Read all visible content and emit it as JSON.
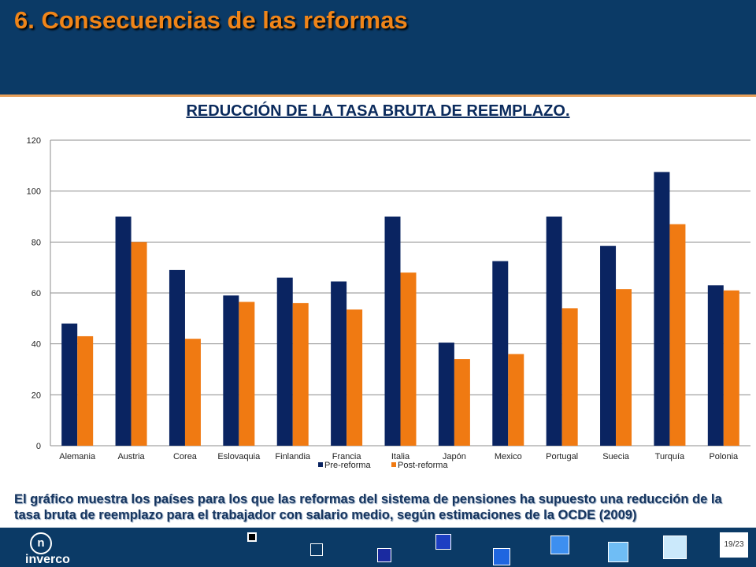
{
  "slide": {
    "title": "6. Consecuencias de las reformas",
    "caption": "El gráfico muestra los países para los que las reformas del sistema de pensiones ha supuesto una reducción de la tasa bruta de reemplazo para el trabajador con salario medio, según estimaciones de la OCDE (2009)",
    "logo_text": "inverco",
    "logo_letter": "n",
    "page_number": "19/23"
  },
  "colors": {
    "header": "#0b3a66",
    "title": "#f08519",
    "pre": "#0a2461",
    "post": "#f07a12"
  },
  "chart_data": {
    "type": "bar",
    "title": "REDUCCIÓN DE LA TASA BRUTA DE REEMPLAZO.",
    "xlabel": "",
    "ylabel": "",
    "ylim": [
      0,
      120
    ],
    "yticks": [
      0,
      20,
      40,
      60,
      80,
      100,
      120
    ],
    "grid": true,
    "legend_position": "bottom",
    "categories": [
      "Alemania",
      "Austria",
      "Corea",
      "Eslovaquia",
      "Finlandia",
      "Francia",
      "Italia",
      "Japón",
      "Mexico",
      "Portugal",
      "Suecia",
      "Turquía",
      "Polonia"
    ],
    "series": [
      {
        "name": "Pre-reforma",
        "color": "#0a2461",
        "values": [
          48,
          90,
          69,
          59,
          66,
          64.5,
          90,
          40.5,
          72.5,
          90,
          78.5,
          107.5,
          63
        ]
      },
      {
        "name": "Post-reforma",
        "color": "#f07a12",
        "values": [
          43,
          80,
          42,
          56.5,
          56,
          53.5,
          68,
          34,
          36,
          54,
          61.5,
          87,
          61
        ]
      }
    ]
  }
}
